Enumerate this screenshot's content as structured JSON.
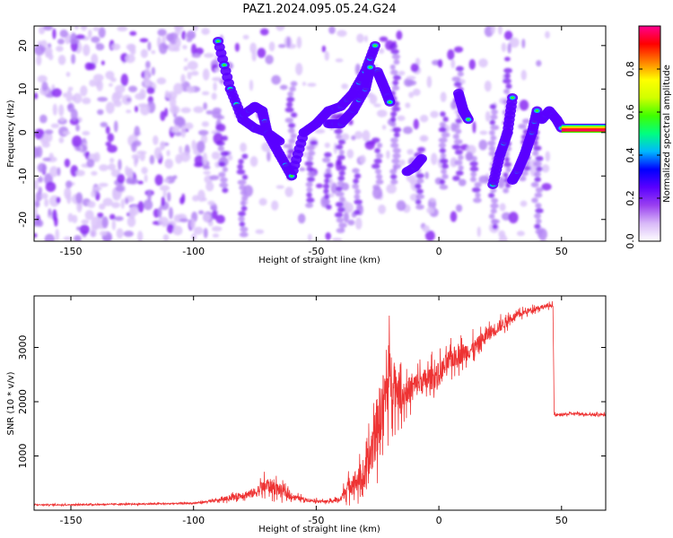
{
  "title": "PAZ1.2024.095.05.24.G24",
  "chart_data": [
    {
      "type": "heatmap",
      "xlabel": "Height of straight line (km)",
      "ylabel": "Frequency (Hz)",
      "xlim": [
        -165,
        68
      ],
      "ylim": [
        -25,
        24.5
      ],
      "xticks": [
        -150,
        -100,
        -50,
        0,
        50
      ],
      "yticks": [
        -20,
        -10,
        0,
        10,
        20
      ],
      "colorbar": {
        "label": "Normalized spectral amplitude",
        "range": [
          0.0,
          1.0
        ],
        "ticks": [
          0.0,
          0.2,
          0.4,
          0.6,
          0.8
        ],
        "colors": [
          "#ffffff",
          "#d8b8f8",
          "#9a40f0",
          "#5a00ff",
          "#0000ff",
          "#00b8ff",
          "#00ff80",
          "#40ff00",
          "#d0ff00",
          "#ffff00",
          "#ff8000",
          "#ff0000",
          "#ff0090"
        ]
      },
      "tracks": [
        {
          "points": [
            [
              -90,
              21
            ],
            [
              -85,
              10
            ],
            [
              -80,
              3
            ],
            [
              -75,
              1
            ],
            [
              -70,
              0
            ],
            [
              -65,
              -5
            ],
            [
              -60,
              -10
            ]
          ]
        },
        {
          "points": [
            [
              -80,
              4
            ],
            [
              -75,
              6
            ],
            [
              -72,
              5
            ],
            [
              -70,
              0
            ],
            [
              -65,
              -2
            ]
          ]
        },
        {
          "points": [
            [
              -60,
              -10
            ],
            [
              -55,
              0
            ],
            [
              -50,
              2
            ],
            [
              -45,
              5
            ],
            [
              -40,
              6
            ],
            [
              -35,
              9
            ],
            [
              -30,
              14
            ],
            [
              -26,
              20
            ]
          ]
        },
        {
          "points": [
            [
              -45,
              2
            ],
            [
              -40,
              2
            ],
            [
              -35,
              5
            ],
            [
              -30,
              10
            ],
            [
              -28,
              15
            ]
          ]
        },
        {
          "points": [
            [
              -25,
              14
            ],
            [
              -22,
              10
            ],
            [
              -20,
              7
            ]
          ]
        },
        {
          "points": [
            [
              -13,
              -9
            ],
            [
              -10,
              -8
            ],
            [
              -7,
              -6
            ]
          ]
        },
        {
          "points": [
            [
              8,
              9
            ],
            [
              10,
              5
            ],
            [
              12,
              3
            ]
          ]
        },
        {
          "points": [
            [
              22,
              -12
            ],
            [
              25,
              -5
            ],
            [
              28,
              0
            ],
            [
              30,
              8
            ]
          ]
        },
        {
          "points": [
            [
              30,
              -11
            ],
            [
              32,
              -9
            ],
            [
              35,
              -5
            ],
            [
              38,
              0
            ],
            [
              40,
              5
            ]
          ]
        },
        {
          "points": [
            [
              42,
              3
            ],
            [
              45,
              5
            ],
            [
              48,
              3
            ],
            [
              50,
              1
            ]
          ]
        },
        {
          "points": [
            [
              50,
              1
            ],
            [
              55,
              1
            ],
            [
              60,
              1
            ],
            [
              65,
              1
            ],
            [
              68,
              1
            ]
          ]
        }
      ]
    },
    {
      "type": "line",
      "xlabel": "Height of straight line (km)",
      "ylabel": "SNR (10 * v/v)",
      "xlim": [
        -165,
        68
      ],
      "ylim": [
        0,
        3950
      ],
      "xticks": [
        -150,
        -100,
        -50,
        0,
        50
      ],
      "yticks": [
        1000,
        2000,
        3000
      ],
      "color": "#ee3333",
      "series": [
        {
          "x": [
            -165,
            -150,
            -130,
            -110,
            -100,
            -90,
            -80,
            -75,
            -70,
            -65,
            -60,
            -55,
            -50,
            -45,
            -40,
            -38,
            -35,
            -30,
            -28,
            -25,
            -22,
            -20,
            -15,
            -10,
            -5,
            0,
            5,
            10,
            15,
            20,
            25,
            30,
            35,
            40,
            45,
            46.5,
            47,
            50,
            55,
            60,
            68
          ],
          "y": [
            100,
            100,
            110,
            120,
            130,
            180,
            280,
            320,
            460,
            380,
            250,
            200,
            170,
            160,
            200,
            380,
            520,
            600,
            1000,
            1600,
            2100,
            2500,
            2100,
            2300,
            2400,
            2500,
            2800,
            2900,
            3000,
            3250,
            3400,
            3550,
            3650,
            3730,
            3770,
            3780,
            1750,
            1760,
            1780,
            1770,
            1760
          ],
          "noise": [
            20,
            25,
            25,
            25,
            30,
            60,
            150,
            200,
            320,
            250,
            120,
            80,
            60,
            50,
            120,
            300,
            450,
            550,
            1000,
            1200,
            1300,
            1200,
            600,
            500,
            500,
            500,
            450,
            400,
            350,
            300,
            250,
            150,
            120,
            100,
            80,
            80,
            60,
            50,
            50,
            50,
            50
          ]
        }
      ]
    }
  ]
}
